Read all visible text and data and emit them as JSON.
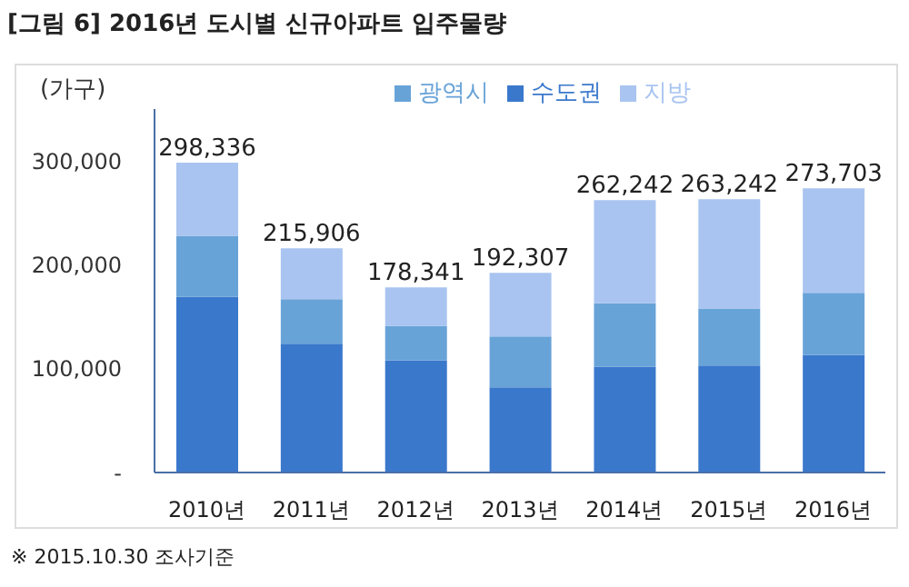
{
  "chart_data": {
    "type": "bar",
    "title": "[그림 6] 2016년 도시별 신규아파트 입주물량",
    "ylabel": "(가구)",
    "categories": [
      "2010년",
      "2011년",
      "2012년",
      "2013년",
      "2014년",
      "2015년",
      "2016년"
    ],
    "series": [
      {
        "name": "수도권",
        "color": "#3a78cc",
        "values": [
          169000,
          124000,
          108000,
          82000,
          102000,
          103000,
          113000
        ]
      },
      {
        "name": "광역시",
        "color": "#68a3d8",
        "values": [
          59000,
          43000,
          33000,
          49000,
          61000,
          55000,
          60000
        ]
      },
      {
        "name": "지방",
        "color": "#a9c4f0",
        "values": [
          70336,
          48906,
          37341,
          61307,
          99242,
          105242,
          100703
        ]
      }
    ],
    "stacked": true,
    "totals": [
      "298,336",
      "215,906",
      "178,341",
      "192,307",
      "262,242",
      "263,242",
      "273,703"
    ],
    "ylim": [
      0,
      350000
    ],
    "yticks": [
      {
        "value": 0,
        "label": "-"
      },
      {
        "value": 100000,
        "label": "100,000"
      },
      {
        "value": 200000,
        "label": "200,000"
      },
      {
        "value": 300000,
        "label": "300,000"
      }
    ],
    "grid": false,
    "legend": "top",
    "annotations": [
      "※ 2015.10.30 조사기준"
    ]
  }
}
